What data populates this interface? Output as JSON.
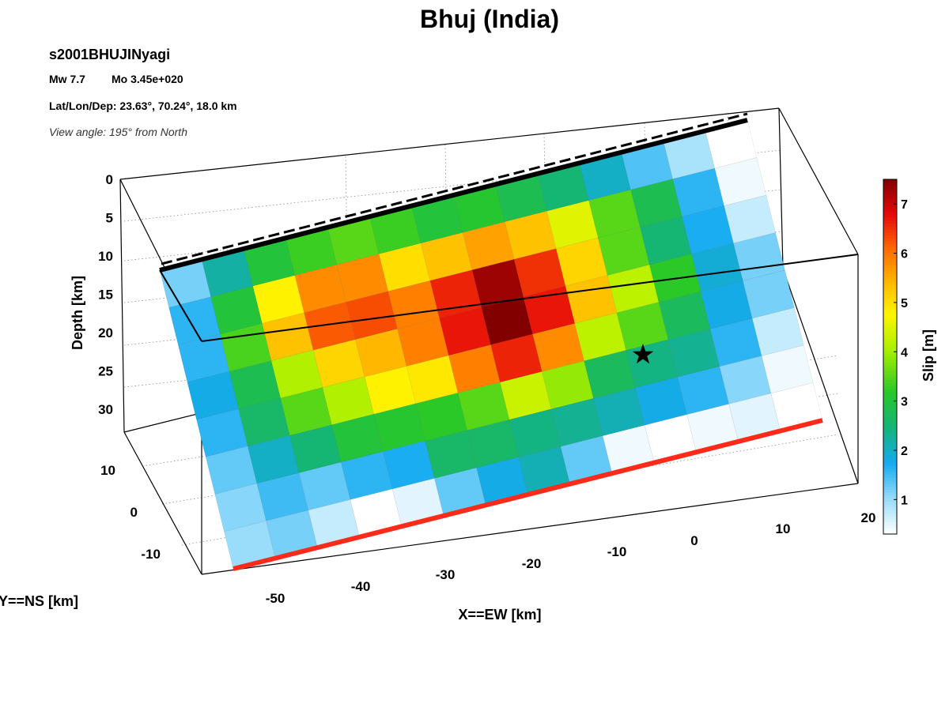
{
  "chart_data": {
    "type": "heatmap",
    "title": "Bhuj (India)",
    "model": "s2001BHUJINyagi",
    "mw": "Mw 7.7",
    "mo": "Mo 3.45e+020",
    "location": "Lat/Lon/Dep: 23.63°, 70.24°, 18.0 km",
    "view_angle": "View angle: 195° from North",
    "xlabel": "X==EW [km]",
    "ylabel": "Y==NS [km]",
    "zlabel": "Depth [km]",
    "colorbar_label": "Slip [m]",
    "x_ticks": [
      "-50",
      "-40",
      "-30",
      "-20",
      "-10",
      "0",
      "10",
      "20"
    ],
    "y_ticks": [
      "10",
      "0",
      "-10"
    ],
    "z_ticks": [
      "0",
      "5",
      "10",
      "15",
      "20",
      "25",
      "30"
    ],
    "colorbar_ticks": [
      1,
      2,
      3,
      4,
      5,
      6,
      7
    ],
    "colorbar_range": [
      0.3,
      7.5
    ],
    "grid": true,
    "hypocenter_marker": "star",
    "fault_top_edge_color": "#000000",
    "fault_bottom_edge_color": "#ff2a1a",
    "slip": [
      [
        1.2,
        2.2,
        3.0,
        3.3,
        3.5,
        3.3,
        3.0,
        3.1,
        2.8,
        2.5,
        2.0,
        1.4,
        0.9,
        0.3
      ],
      [
        1.6,
        3.0,
        4.8,
        5.8,
        5.8,
        5.0,
        5.3,
        5.6,
        5.3,
        4.5,
        3.5,
        2.8,
        1.6,
        0.4
      ],
      [
        1.6,
        3.4,
        5.3,
        6.2,
        6.3,
        5.9,
        6.6,
        7.3,
        6.5,
        5.1,
        3.5,
        2.5,
        1.7,
        0.7
      ],
      [
        1.8,
        2.8,
        4.1,
        5.1,
        5.4,
        5.9,
        6.7,
        7.6,
        6.7,
        5.3,
        4.2,
        3.2,
        1.9,
        1.2
      ],
      [
        1.6,
        2.6,
        3.5,
        4.1,
        4.8,
        4.9,
        5.9,
        6.6,
        5.8,
        4.2,
        3.5,
        2.7,
        1.8,
        1.2
      ],
      [
        1.3,
        2.0,
        2.5,
        3.0,
        3.1,
        3.2,
        3.5,
        4.3,
        3.9,
        2.7,
        2.4,
        2.3,
        1.6,
        0.7
      ],
      [
        1.1,
        1.5,
        1.3,
        1.6,
        1.7,
        2.6,
        2.6,
        2.4,
        2.3,
        2.1,
        1.8,
        1.6,
        1.1,
        0.4
      ],
      [
        1.0,
        1.2,
        0.7,
        0.3,
        0.5,
        1.3,
        1.8,
        2.1,
        1.3,
        0.4,
        0.3,
        0.4,
        0.5,
        0.3
      ]
    ]
  }
}
